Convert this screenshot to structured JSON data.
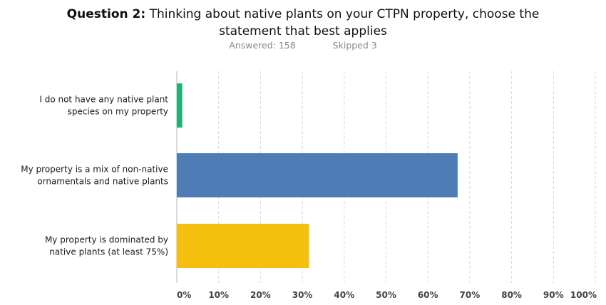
{
  "header": {
    "question_label": "Question 2:",
    "question_text_line1": "Thinking about native plants on your CTPN property, choose the",
    "question_text_line2": "statement that best applies",
    "answered_label": "Answered:",
    "answered_value": "158",
    "skipped_label": "Skipped",
    "skipped_value": "3"
  },
  "chart_data": {
    "type": "bar",
    "orientation": "horizontal",
    "categories": [
      [
        "I do not have any native plant",
        "species on my property"
      ],
      [
        "My property is a mix of non-native",
        "ornamentals and native plants"
      ],
      [
        "My property is dominated by",
        "native plants (at least 75%)"
      ]
    ],
    "values": [
      1.3,
      67.1,
      31.6
    ],
    "bar_colors": [
      "#1fb373",
      "#4e7cb5",
      "#f5bf0f"
    ],
    "xlim": [
      0,
      100
    ],
    "xticks": [
      "0%",
      "10%",
      "20%",
      "30%",
      "40%",
      "50%",
      "60%",
      "70%",
      "80%",
      "90%",
      "100%"
    ],
    "grid": true
  }
}
